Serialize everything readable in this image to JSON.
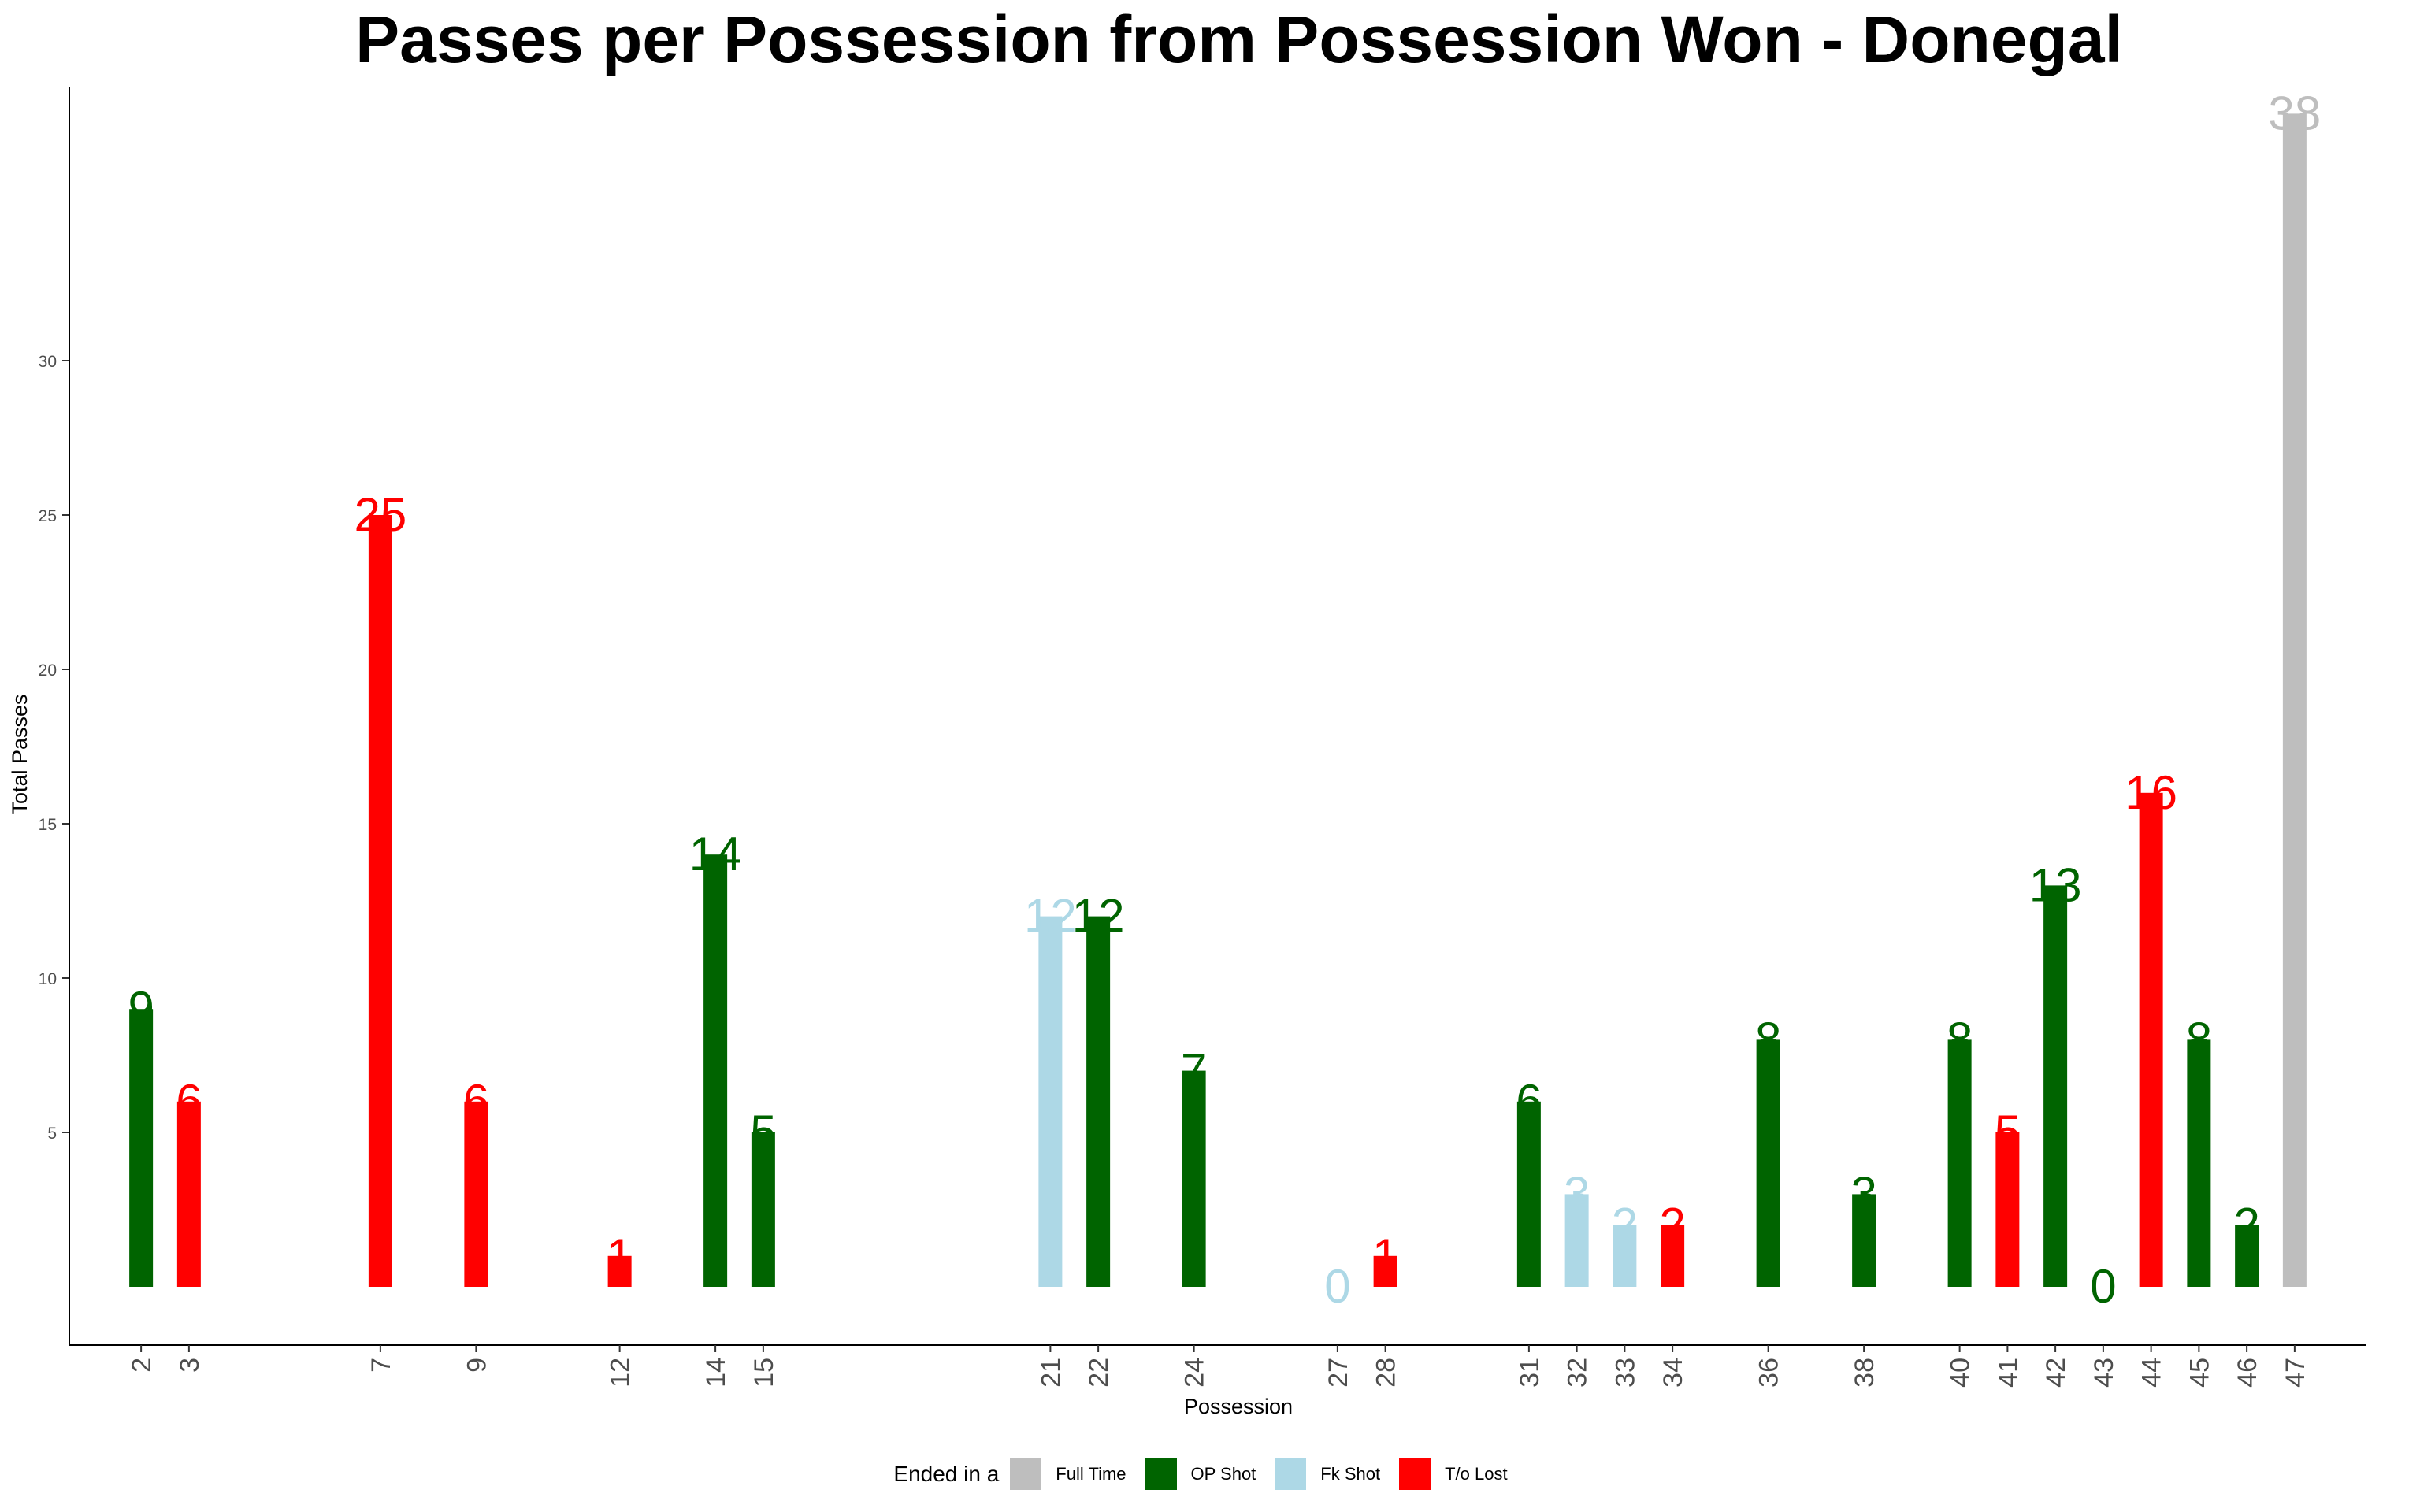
{
  "chart_data": {
    "type": "bar",
    "title": "Passes per Possession from Possession Won - Donegal",
    "xlabel": "Possession",
    "ylabel": "Total Passes",
    "ylim": [
      -2,
      40
    ],
    "yticks": [
      5,
      10,
      15,
      20,
      25,
      30
    ],
    "x_range": [
      0.5,
      48.5
    ],
    "grid": false,
    "legend_position": "bottom",
    "legend_title": "Ended in a",
    "categories_order": [
      "Full Time",
      "OP Shot",
      "Fk Shot",
      "T/o Lost"
    ],
    "colors": {
      "Full Time": "#bebebe",
      "OP Shot": "#006400",
      "Fk Shot": "#add8e6",
      "T/o Lost": "#ff0000"
    },
    "bars": [
      {
        "possession": 2,
        "passes": 9,
        "ended": "OP Shot"
      },
      {
        "possession": 3,
        "passes": 6,
        "ended": "T/o Lost"
      },
      {
        "possession": 7,
        "passes": 25,
        "ended": "T/o Lost"
      },
      {
        "possession": 9,
        "passes": 6,
        "ended": "T/o Lost"
      },
      {
        "possession": 12,
        "passes": 1,
        "ended": "T/o Lost"
      },
      {
        "possession": 14,
        "passes": 14,
        "ended": "OP Shot"
      },
      {
        "possession": 15,
        "passes": 5,
        "ended": "OP Shot"
      },
      {
        "possession": 21,
        "passes": 12,
        "ended": "Fk Shot"
      },
      {
        "possession": 22,
        "passes": 12,
        "ended": "OP Shot"
      },
      {
        "possession": 24,
        "passes": 7,
        "ended": "OP Shot"
      },
      {
        "possession": 27,
        "passes": 0,
        "ended": "Fk Shot"
      },
      {
        "possession": 28,
        "passes": 1,
        "ended": "T/o Lost"
      },
      {
        "possession": 31,
        "passes": 6,
        "ended": "OP Shot"
      },
      {
        "possession": 32,
        "passes": 3,
        "ended": "Fk Shot"
      },
      {
        "possession": 33,
        "passes": 2,
        "ended": "Fk Shot"
      },
      {
        "possession": 34,
        "passes": 2,
        "ended": "T/o Lost"
      },
      {
        "possession": 36,
        "passes": 8,
        "ended": "OP Shot"
      },
      {
        "possession": 38,
        "passes": 3,
        "ended": "OP Shot"
      },
      {
        "possession": 40,
        "passes": 8,
        "ended": "OP Shot"
      },
      {
        "possession": 41,
        "passes": 5,
        "ended": "T/o Lost"
      },
      {
        "possession": 42,
        "passes": 13,
        "ended": "OP Shot"
      },
      {
        "possession": 43,
        "passes": 0,
        "ended": "OP Shot"
      },
      {
        "possession": 44,
        "passes": 16,
        "ended": "T/o Lost"
      },
      {
        "possession": 45,
        "passes": 8,
        "ended": "OP Shot"
      },
      {
        "possession": 46,
        "passes": 2,
        "ended": "OP Shot"
      },
      {
        "possession": 47,
        "passes": 38,
        "ended": "Full Time"
      }
    ]
  }
}
